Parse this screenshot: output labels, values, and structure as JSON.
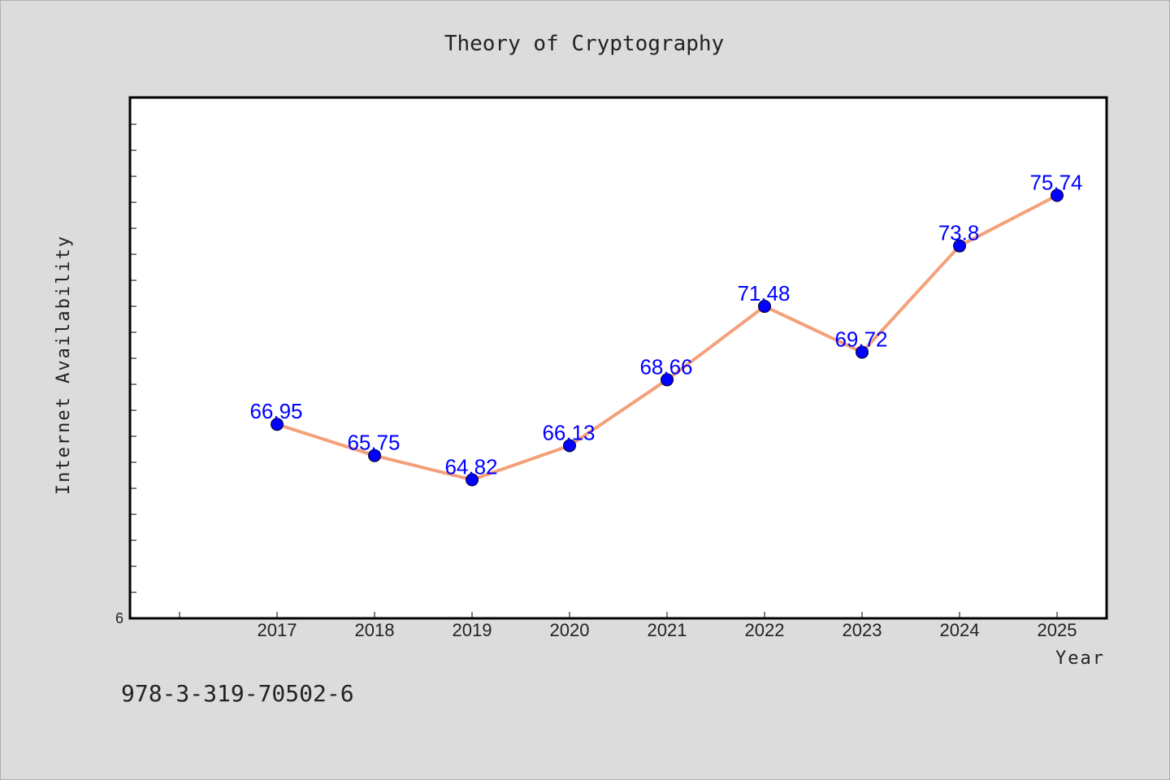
{
  "chart_data": {
    "type": "line",
    "title": "Theory of Cryptography",
    "xlabel": "Year",
    "ylabel": "Internet Availability",
    "categories": [
      "2017",
      "2018",
      "2019",
      "2020",
      "2021",
      "2022",
      "2023",
      "2024",
      "2025"
    ],
    "series": [
      {
        "values": [
          66.95,
          65.75,
          64.82,
          66.13,
          68.66,
          71.48,
          69.72,
          73.8,
          75.74
        ],
        "labels": [
          "66.95",
          "65.75",
          "64.82",
          "66.13",
          "68.66",
          "71.48",
          "69.72",
          "73.8",
          "75.74"
        ]
      }
    ],
    "y_axis_visible_label": "6",
    "ylim": [
      59.5,
      79.5
    ],
    "grid": false,
    "legend": "none",
    "colors": {
      "line": "#f4a07a",
      "marker": "#0000ff",
      "data_label": "#0000ff",
      "plot_background": "#ffffff",
      "page_background": "#dcdcdc"
    }
  },
  "footer": {
    "isbn": "978-3-319-70502-6"
  }
}
